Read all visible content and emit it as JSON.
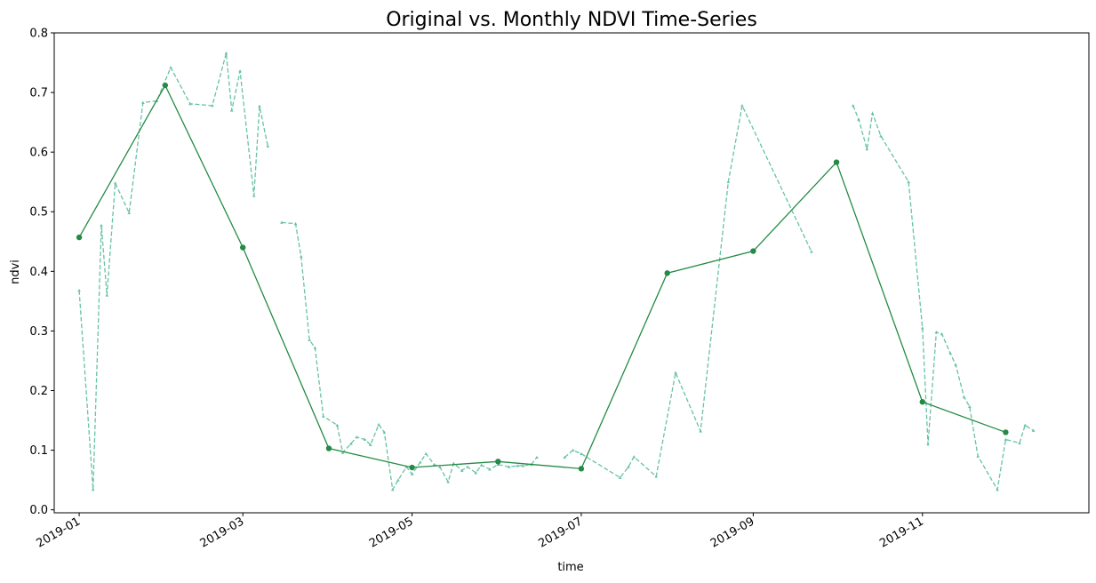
{
  "chart_data": {
    "type": "line",
    "title": "Original vs. Monthly NDVI Time-Series",
    "xlabel": "time",
    "ylabel": "ndvi",
    "xlim": [
      "2018-12-23",
      "2019-12-31"
    ],
    "ylim": [
      -0.005,
      0.8
    ],
    "x_ticks": [
      "2019-01-01",
      "2019-03-01",
      "2019-05-01",
      "2019-07-01",
      "2019-09-01",
      "2019-11-01"
    ],
    "x_tick_labels": [
      "2019-01",
      "2019-03",
      "2019-05",
      "2019-07",
      "2019-09",
      "2019-11"
    ],
    "y_ticks": [
      0.0,
      0.1,
      0.2,
      0.3,
      0.4,
      0.5,
      0.6,
      0.7,
      0.8
    ],
    "y_tick_labels": [
      "0.0",
      "0.1",
      "0.2",
      "0.3",
      "0.4",
      "0.5",
      "0.6",
      "0.7",
      "0.8"
    ],
    "grid": false,
    "legend": "none",
    "series": [
      {
        "style": "dashed",
        "marker": "triangle",
        "color": "#66c2a5",
        "points": [
          [
            "2019-01-01",
            0.368
          ],
          [
            "2019-01-06",
            0.034
          ],
          [
            "2019-01-09",
            0.477
          ],
          [
            "2019-01-11",
            0.36
          ],
          [
            "2019-01-14",
            0.548
          ],
          [
            "2019-01-19",
            0.498
          ],
          [
            "2019-01-24",
            0.683
          ],
          [
            "2019-01-29",
            0.686
          ],
          [
            "2019-02-03",
            0.742
          ],
          [
            "2019-02-10",
            0.681
          ],
          [
            "2019-02-18",
            0.678
          ],
          [
            "2019-02-23",
            0.766
          ],
          [
            "2019-02-25",
            0.67
          ],
          [
            "2019-02-28",
            0.736
          ],
          [
            "2019-03-05",
            0.527
          ],
          [
            "2019-03-07",
            0.677
          ],
          [
            "2019-03-10",
            0.61
          ],
          [
            null,
            null
          ],
          [
            "2019-03-15",
            0.482
          ],
          [
            "2019-03-20",
            0.48
          ],
          [
            "2019-03-22",
            0.425
          ],
          [
            "2019-03-25",
            0.285
          ],
          [
            "2019-03-27",
            0.272
          ],
          [
            "2019-03-30",
            0.157
          ],
          [
            "2019-04-04",
            0.142
          ],
          [
            "2019-04-06",
            0.096
          ],
          [
            "2019-04-09",
            0.111
          ],
          [
            "2019-04-11",
            0.122
          ],
          [
            "2019-04-14",
            0.118
          ],
          [
            "2019-04-16",
            0.109
          ],
          [
            "2019-04-19",
            0.143
          ],
          [
            "2019-04-21",
            0.13
          ],
          [
            "2019-04-24",
            0.034
          ],
          [
            "2019-04-26",
            0.05
          ],
          [
            "2019-04-29",
            0.072
          ],
          [
            "2019-05-01",
            0.06
          ],
          [
            "2019-05-04",
            0.08
          ],
          [
            "2019-05-06",
            0.094
          ],
          [
            "2019-05-09",
            0.076
          ],
          [
            "2019-05-11",
            0.072
          ],
          [
            "2019-05-14",
            0.047
          ],
          [
            "2019-05-16",
            0.078
          ],
          [
            "2019-05-19",
            0.066
          ],
          [
            "2019-05-21",
            0.072
          ],
          [
            "2019-05-24",
            0.062
          ],
          [
            "2019-05-26",
            0.075
          ],
          [
            "2019-05-29",
            0.068
          ],
          [
            "2019-06-01",
            0.076
          ],
          [
            "2019-06-05",
            0.072
          ],
          [
            "2019-06-08",
            0.074
          ],
          [
            "2019-06-10",
            0.074
          ],
          [
            "2019-06-13",
            0.076
          ],
          [
            "2019-06-15",
            0.088
          ],
          [
            null,
            null
          ],
          [
            "2019-06-25",
            0.088
          ],
          [
            "2019-06-28",
            0.1
          ],
          [
            "2019-07-01",
            0.094
          ],
          [
            "2019-07-15",
            0.054
          ],
          [
            "2019-07-18",
            0.072
          ],
          [
            "2019-07-20",
            0.089
          ],
          [
            "2019-07-28",
            0.056
          ],
          [
            "2019-08-04",
            0.23
          ],
          [
            "2019-08-13",
            0.132
          ],
          [
            "2019-08-23",
            0.55
          ],
          [
            "2019-08-28",
            0.678
          ],
          [
            "2019-09-22",
            0.433
          ],
          [
            null,
            null
          ],
          [
            "2019-10-07",
            0.678
          ],
          [
            "2019-10-09",
            0.655
          ],
          [
            "2019-10-12",
            0.605
          ],
          [
            "2019-10-14",
            0.665
          ],
          [
            "2019-10-17",
            0.627
          ],
          [
            "2019-10-27",
            0.55
          ],
          [
            "2019-11-01",
            0.305
          ],
          [
            "2019-11-03",
            0.11
          ],
          [
            "2019-11-06",
            0.298
          ],
          [
            "2019-11-08",
            0.295
          ],
          [
            "2019-11-11",
            0.263
          ],
          [
            "2019-11-13",
            0.243
          ],
          [
            "2019-11-16",
            0.189
          ],
          [
            "2019-11-18",
            0.173
          ],
          [
            "2019-11-21",
            0.09
          ],
          [
            "2019-11-28",
            0.034
          ],
          [
            "2019-12-01",
            0.118
          ],
          [
            "2019-12-06",
            0.112
          ],
          [
            "2019-12-08",
            0.142
          ],
          [
            "2019-12-11",
            0.133
          ]
        ]
      },
      {
        "style": "solid",
        "marker": "circle",
        "color": "#238b45",
        "points": [
          [
            "2019-01-01",
            0.457
          ],
          [
            "2019-02-01",
            0.712
          ],
          [
            "2019-03-01",
            0.44
          ],
          [
            "2019-04-01",
            0.103
          ],
          [
            "2019-05-01",
            0.071
          ],
          [
            "2019-06-01",
            0.081
          ],
          [
            "2019-07-01",
            0.069
          ],
          [
            "2019-08-01",
            0.397
          ],
          [
            "2019-09-01",
            0.434
          ],
          [
            "2019-10-01",
            0.583
          ],
          [
            "2019-11-01",
            0.181
          ],
          [
            "2019-12-01",
            0.13
          ]
        ]
      }
    ]
  }
}
